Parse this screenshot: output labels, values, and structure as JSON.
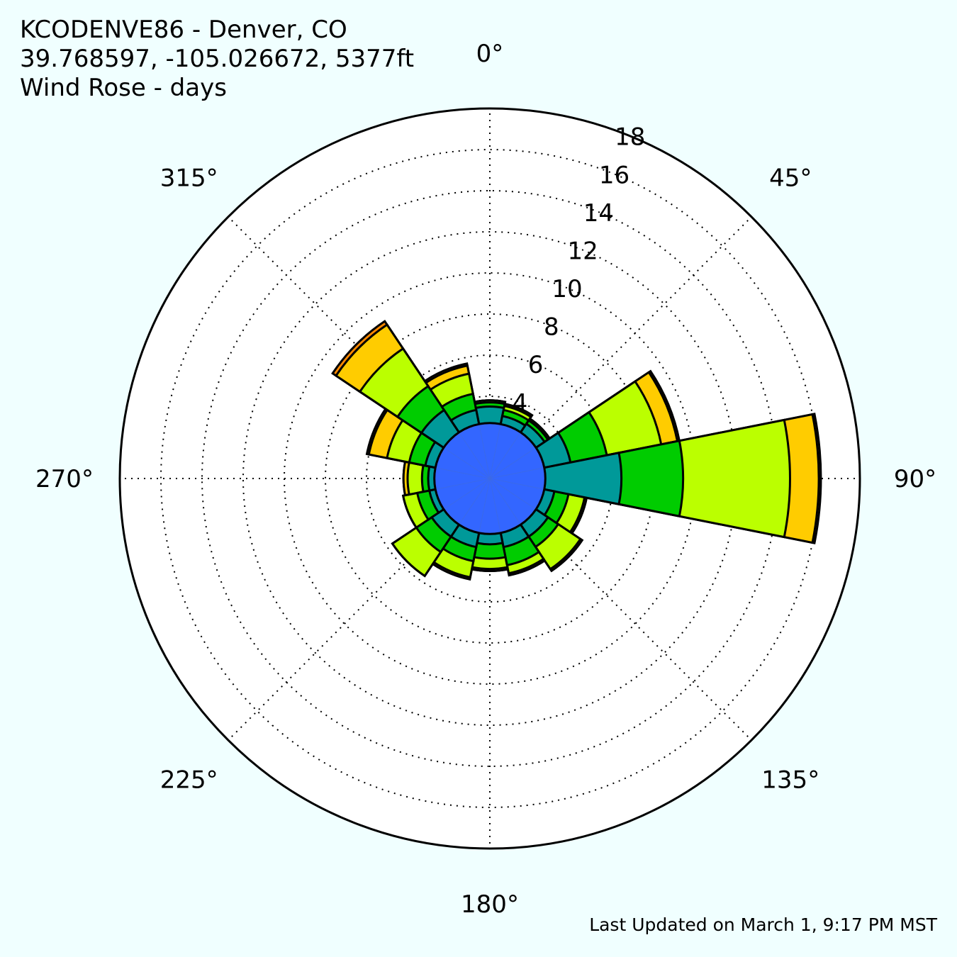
{
  "header": {
    "station": "KCODENVE86 - Denver, CO",
    "location": "39.768597, -105.026672, 5377ft",
    "chart_title": "Wind Rose - days"
  },
  "footer": {
    "last_updated": "Last Updated on March 1, 9:17 PM MST"
  },
  "chart_data": {
    "type": "windrose",
    "units": "days",
    "title": "Wind Rose - days",
    "angle_labels": [
      "0°",
      "45°",
      "90°",
      "135°",
      "180°",
      "225°",
      "270°",
      "315°"
    ],
    "radial_ticks": [
      4,
      6,
      8,
      10,
      12,
      14,
      16,
      18
    ],
    "rmax": 18,
    "grid": true,
    "colors": {
      "bin0": "#3366ff",
      "bin1": "#009999",
      "bin2": "#00cc00",
      "bin3": "#bbff00",
      "bin4": "#ffcc00",
      "bin5": "#ff8800",
      "background": "#f0ffff"
    },
    "directions": [
      0,
      22.5,
      45,
      67.5,
      90,
      112.5,
      135,
      157.5,
      180,
      202.5,
      225,
      247.5,
      270,
      292.5,
      315,
      337.5
    ],
    "bin_colors": [
      "#3366ff",
      "#009999",
      "#00cc00",
      "#bbff00",
      "#ffcc00",
      "#ff8800"
    ],
    "cumulative": [
      [
        2.7,
        3.5,
        3.7,
        3.8,
        3.8,
        3.8
      ],
      [
        2.7,
        3.1,
        3.4,
        3.6,
        3.7,
        3.7
      ],
      [
        2.7,
        3.2,
        3.4,
        3.5,
        3.5,
        3.5
      ],
      [
        2.7,
        4.0,
        5.8,
        8.5,
        9.3,
        9.4
      ],
      [
        2.7,
        6.4,
        9.4,
        14.6,
        16.0,
        16.1
      ],
      [
        2.7,
        3.2,
        3.9,
        4.7,
        4.8,
        4.8
      ],
      [
        2.7,
        3.4,
        4.0,
        5.3,
        5.4,
        5.4
      ],
      [
        2.7,
        3.4,
        4.3,
        4.7,
        4.8,
        4.8
      ],
      [
        2.7,
        3.2,
        3.9,
        4.4,
        4.5,
        4.5
      ],
      [
        2.7,
        3.4,
        4.1,
        4.9,
        5.0,
        5.0
      ],
      [
        2.7,
        3.4,
        4.3,
        5.7,
        5.7,
        5.7
      ],
      [
        2.7,
        3.0,
        3.6,
        4.3,
        4.3,
        4.3
      ],
      [
        2.7,
        3.0,
        3.3,
        4.0,
        4.2,
        4.2
      ],
      [
        2.7,
        3.2,
        4.0,
        5.1,
        6.0,
        6.1
      ],
      [
        2.7,
        4.0,
        5.4,
        7.6,
        9.0,
        9.2
      ],
      [
        2.7,
        3.4,
        4.2,
        5.2,
        5.6,
        5.7
      ]
    ]
  }
}
